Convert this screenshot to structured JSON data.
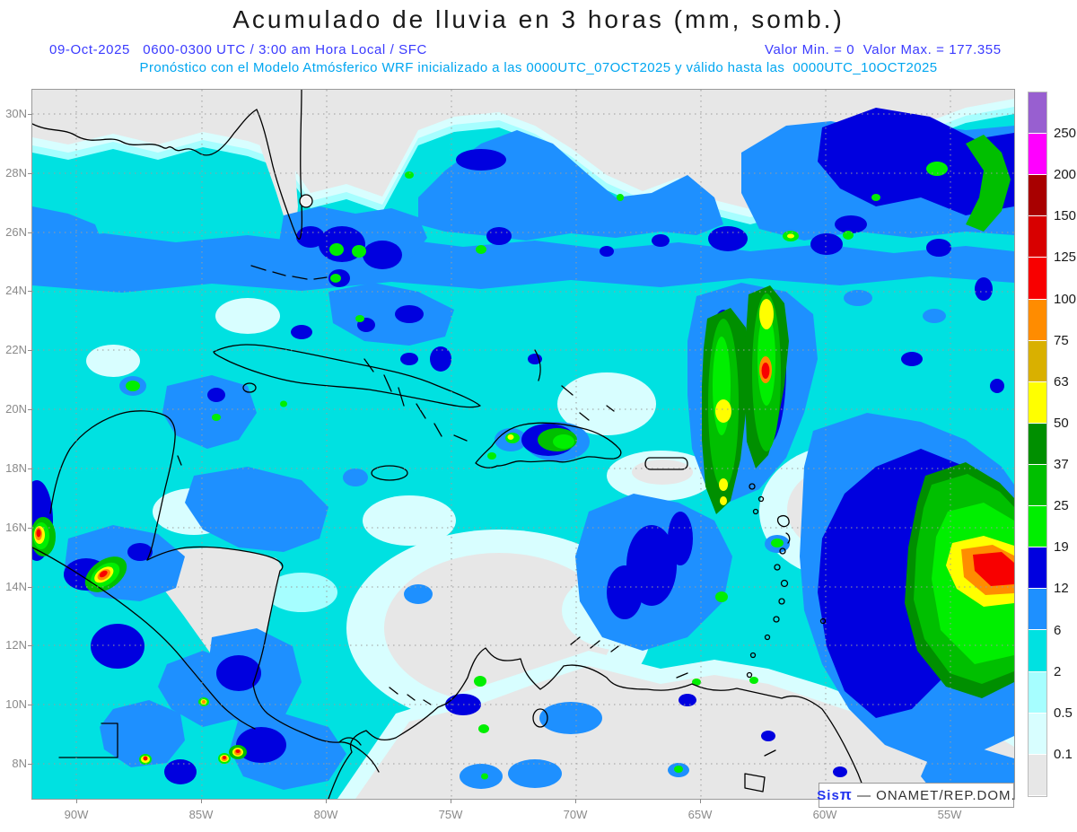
{
  "header": {
    "title": "Acumulado de lluvia en 3 horas (mm, somb.)",
    "line1_left": "09-Oct-2025   0600-0300 UTC / 3:00 am Hora Local / SFC",
    "line1_right": "Valor Min. = 0  Valor Max. = 177.355",
    "line2": "Pronóstico con el Modelo Atmósferico WRF inicializado a las 0000UTC_07OCT2025 y válido hasta las  0000UTC_10OCT2025"
  },
  "axes": {
    "lat_labels": [
      "30N",
      "28N",
      "26N",
      "24N",
      "22N",
      "20N",
      "18N",
      "16N",
      "14N",
      "12N",
      "10N",
      "8N"
    ],
    "lon_labels": [
      "90W",
      "85W",
      "80W",
      "75W",
      "70W",
      "65W",
      "60W",
      "55W"
    ]
  },
  "legend": {
    "unit": "mm",
    "segment_colors_top_to_bottom": [
      "#985fd0",
      "#ff00ff",
      "#a80000",
      "#d80000",
      "#f80000",
      "#ff8c00",
      "#d9b000",
      "#ffff00",
      "#008f00",
      "#00bf00",
      "#00ef00",
      "#0000df",
      "#1e90ff",
      "#00e1e1",
      "#a6feff",
      "#d8feff",
      "#e7e7e7"
    ],
    "labels_top_to_bottom": [
      "250",
      "200",
      "150",
      "125",
      "100",
      "75",
      "63",
      "50",
      "37",
      "25",
      "19",
      "12",
      "6",
      "2",
      "0.5",
      "0.1"
    ],
    "levels_mm": [
      0.1,
      0.5,
      2,
      6,
      12,
      19,
      25,
      37,
      50,
      63,
      75,
      100,
      125,
      150,
      200,
      250
    ]
  },
  "stats": {
    "value_min": "0",
    "value_max": "177.355"
  },
  "watermark": {
    "sis": "Sis",
    "pi": "π",
    "rest": " — ONAMET/REP.DOM."
  }
}
